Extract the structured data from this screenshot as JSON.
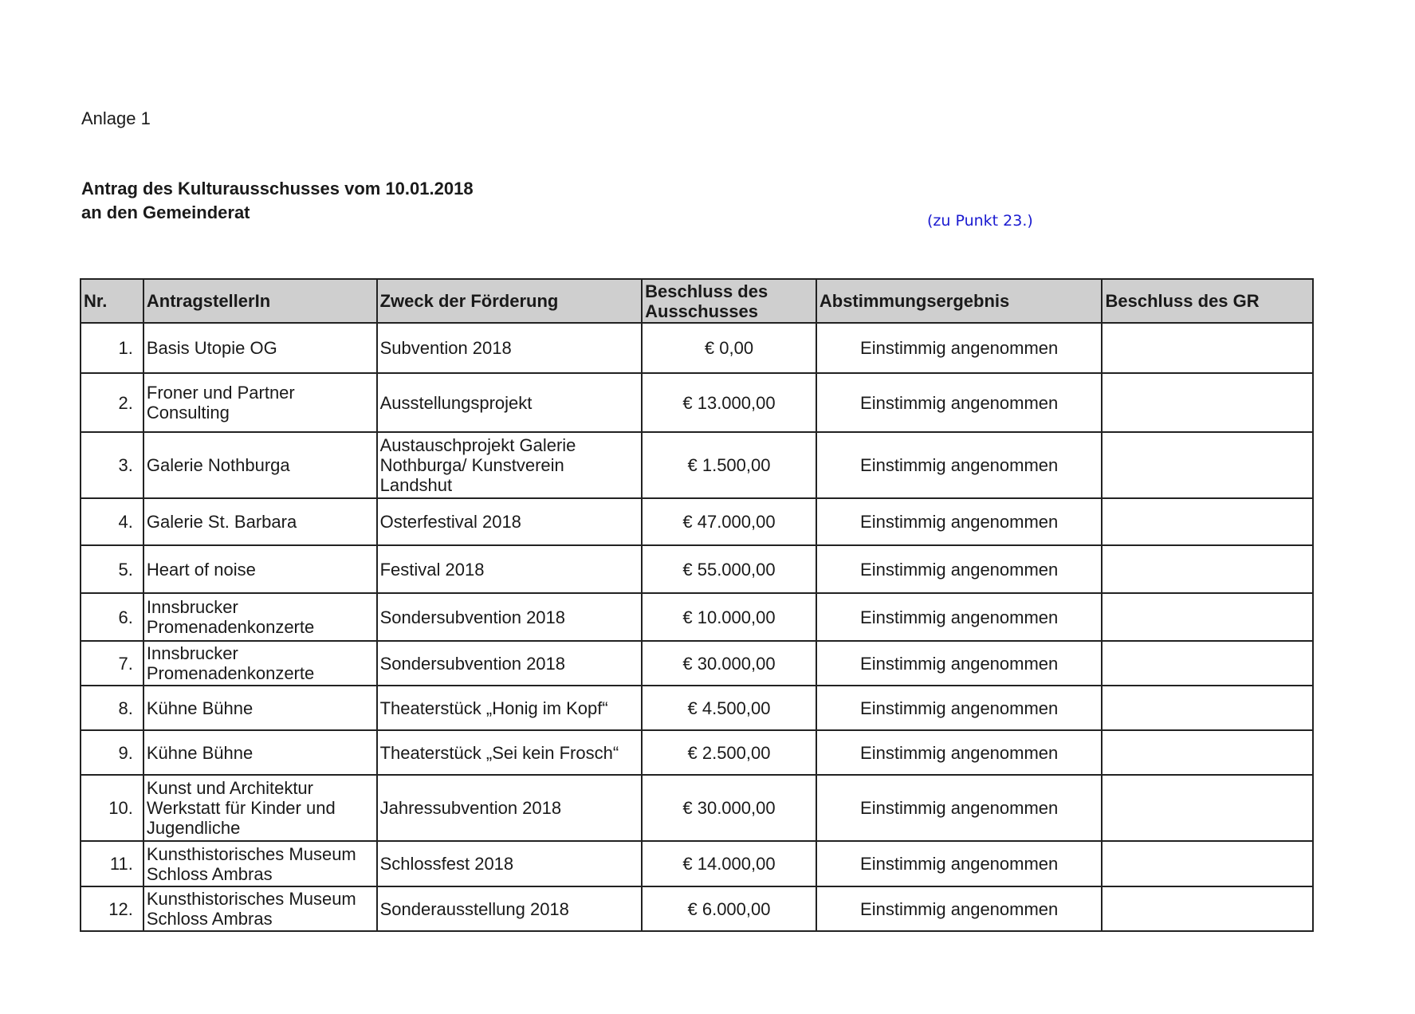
{
  "header": {
    "anlage": "Anlage 1",
    "title_line1": "Antrag des Kulturausschusses vom 10.01.2018",
    "title_line2": "an den Gemeinderat",
    "punkt": "(zu Punkt 23.)"
  },
  "table": {
    "columns": [
      "Nr.",
      "AntragstellerIn",
      "Zweck der Förderung",
      "Beschluss des Ausschusses",
      "Abstimmungsergebnis",
      "Beschluss des GR"
    ],
    "rows": [
      {
        "nr": "1.",
        "antragsteller": "Basis Utopie OG",
        "zweck": "Subvention 2018",
        "beschluss": "€ 0,00",
        "ergebnis": "Einstimmig angenommen",
        "gr": ""
      },
      {
        "nr": "2.",
        "antragsteller": "Froner und Partner Consulting",
        "zweck": "Ausstellungsprojekt",
        "beschluss": "€ 13.000,00",
        "ergebnis": "Einstimmig angenommen",
        "gr": ""
      },
      {
        "nr": "3.",
        "antragsteller": "Galerie Nothburga",
        "zweck": "Austauschprojekt Galerie Nothburga/ Kunstverein Landshut",
        "beschluss": "€ 1.500,00",
        "ergebnis": "Einstimmig angenommen",
        "gr": ""
      },
      {
        "nr": "4.",
        "antragsteller": "Galerie St. Barbara",
        "zweck": "Osterfestival 2018",
        "beschluss": "€ 47.000,00",
        "ergebnis": "Einstimmig angenommen",
        "gr": ""
      },
      {
        "nr": "5.",
        "antragsteller": "Heart of noise",
        "zweck": "Festival 2018",
        "beschluss": "€ 55.000,00",
        "ergebnis": "Einstimmig angenommen",
        "gr": ""
      },
      {
        "nr": "6.",
        "antragsteller": "Innsbrucker Promenadenkonzerte",
        "zweck": "Sondersubvention 2018",
        "beschluss": "€ 10.000,00",
        "ergebnis": "Einstimmig angenommen",
        "gr": ""
      },
      {
        "nr": "7.",
        "antragsteller": "Innsbrucker Promenadenkonzerte",
        "zweck": "Sondersubvention 2018",
        "beschluss": "€ 30.000,00",
        "ergebnis": "Einstimmig angenommen",
        "gr": ""
      },
      {
        "nr": "8.",
        "antragsteller": "Kühne Bühne",
        "zweck": "Theaterstück „Honig im Kopf“",
        "beschluss": "€ 4.500,00",
        "ergebnis": "Einstimmig angenommen",
        "gr": ""
      },
      {
        "nr": "9.",
        "antragsteller": "Kühne Bühne",
        "zweck": "Theaterstück „Sei kein Frosch“",
        "beschluss": "€ 2.500,00",
        "ergebnis": "Einstimmig angenommen",
        "gr": ""
      },
      {
        "nr": "10.",
        "antragsteller": "Kunst und Architektur Werkstatt für Kinder und Jugendliche",
        "zweck": "Jahressubvention 2018",
        "beschluss": "€ 30.000,00",
        "ergebnis": "Einstimmig angenommen",
        "gr": ""
      },
      {
        "nr": "11.",
        "antragsteller": "Kunsthistorisches Museum Schloss Ambras",
        "zweck": "Schlossfest 2018",
        "beschluss": "€ 14.000,00",
        "ergebnis": "Einstimmig angenommen",
        "gr": ""
      },
      {
        "nr": "12.",
        "antragsteller": "Kunsthistorisches Museum Schloss Ambras",
        "zweck": "Sonderausstellung 2018",
        "beschluss": "€ 6.000,00",
        "ergebnis": "Einstimmig angenommen",
        "gr": ""
      }
    ]
  }
}
